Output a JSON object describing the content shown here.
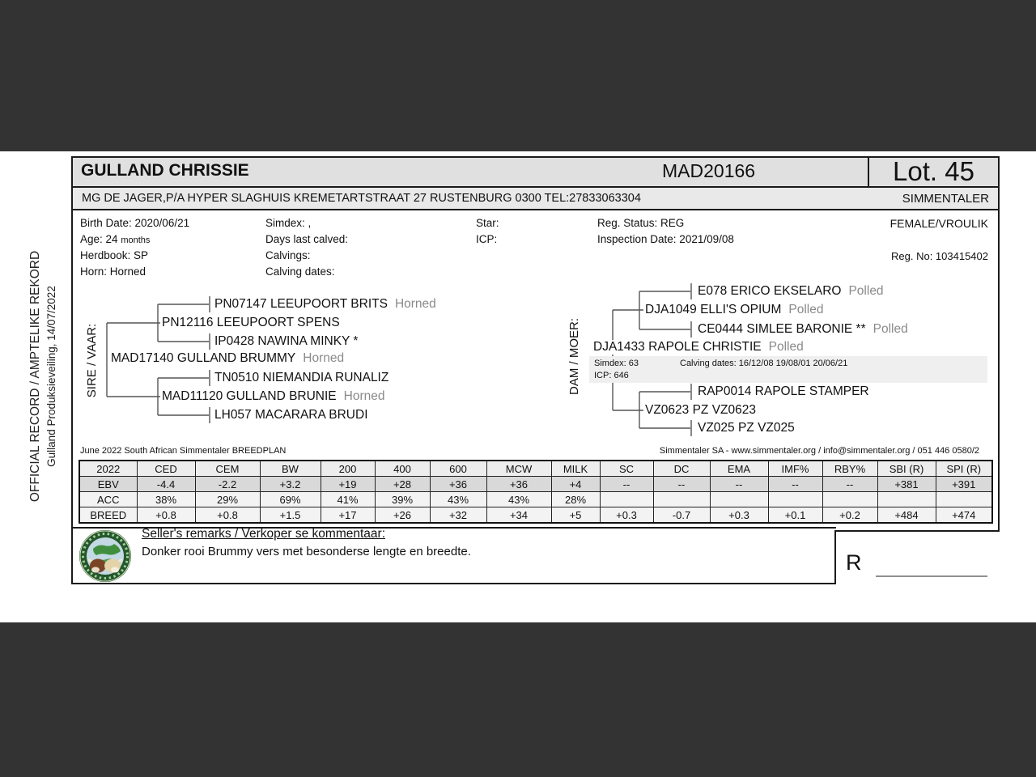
{
  "header": {
    "animal_name": "GULLAND CHRISSIE",
    "animal_id": "MAD20166",
    "lot": "Lot. 45",
    "owner_line": "MG DE JAGER,P/A HYPER SLAGHUIS KREMETARTSTRAAT 27 RUSTENBURG 0300 TEL:27833063304",
    "breed": "SIMMENTALER"
  },
  "side_label": {
    "line1": "OFFICIAL RECORD / AMPTELIKE REKORD",
    "line2": "Gulland Produksieveiling, 14/07/2022"
  },
  "info": {
    "birth_date": "Birth Date: 2020/06/21",
    "age": "Age: 24",
    "age_unit": "months",
    "herdbook": "Herdbook: SP",
    "horn": "Horn: Horned",
    "simdex": "Simdex: ,",
    "days_last_calved": "Days last calved:",
    "calvings": "Calvings:",
    "calving_dates": "Calving dates:",
    "star": "Star:",
    "icp": "ICP:",
    "reg_status": "Reg. Status: REG",
    "inspection_date": "Inspection Date: 2021/09/08",
    "sex": "FEMALE/VROULIK",
    "reg_no": "Reg. No: 103415402"
  },
  "pedigree": {
    "sire_label": "SIRE / VAAR:",
    "dam_label": "DAM / MOER:",
    "sire": {
      "name": "MAD17140 GULLAND BRUMMY",
      "tag": "Horned"
    },
    "sire_sire": {
      "name": "PN12116 LEEUPOORT SPENS",
      "tag": ""
    },
    "sire_sire_sire": {
      "name": "PN07147 LEEUPOORT BRITS",
      "tag": "Horned"
    },
    "sire_sire_dam": {
      "name": "IP0428 NAWINA MINKY *",
      "tag": ""
    },
    "sire_dam": {
      "name": "MAD11120 GULLAND BRUNIE",
      "tag": "Horned"
    },
    "sire_dam_sire": {
      "name": "TN0510 NIEMANDIA RUNALIZ",
      "tag": ""
    },
    "sire_dam_dam": {
      "name": "LH057 MACARARA BRUDI",
      "tag": ""
    },
    "dam": {
      "name": "DJA1433 RAPOLE CHRISTIE",
      "tag": "Polled"
    },
    "dam_info": {
      "simdex": "Simdex: 63",
      "calving_dates": "Calving dates: 16/12/08  19/08/01  20/06/21",
      "icp": "ICP: 646"
    },
    "dam_sire": {
      "name": "DJA1049 ELLI'S OPIUM",
      "tag": "Polled"
    },
    "dam_sire_sire": {
      "name": "E078 ERICO EKSELARO",
      "tag": "Polled"
    },
    "dam_sire_dam": {
      "name": "CE0444 SIMLEE BARONIE **",
      "tag": "Polled"
    },
    "dam_dam": {
      "name": "VZ0623 PZ VZ0623",
      "tag": ""
    },
    "dam_dam_sire": {
      "name": "RAP0014 RAPOLE STAMPER",
      "tag": ""
    },
    "dam_dam_dam": {
      "name": "VZ025 PZ VZ025",
      "tag": ""
    }
  },
  "breedplan": {
    "left": "June 2022 South African Simmentaler BREEDPLAN",
    "right": "Simmentaler SA - www.simmentaler.org / info@simmentaler.org / 051 446 0580/2"
  },
  "table": {
    "headers": [
      "2022",
      "CED",
      "CEM",
      "BW",
      "200",
      "400",
      "600",
      "MCW",
      "MILK",
      "SC",
      "DC",
      "EMA",
      "IMF%",
      "RBY%",
      "SBI (R)",
      "SPI (R)"
    ],
    "rows": [
      {
        "label": "EBV",
        "values": [
          "-4.4",
          "-2.2",
          "+3.2",
          "+19",
          "+28",
          "+36",
          "+36",
          "+4",
          "--",
          "--",
          "--",
          "--",
          "--",
          "+381",
          "+391"
        ]
      },
      {
        "label": "ACC",
        "values": [
          "38%",
          "29%",
          "69%",
          "41%",
          "39%",
          "43%",
          "43%",
          "28%",
          "",
          "",
          "",
          "",
          "",
          "",
          ""
        ]
      },
      {
        "label": "BREED",
        "values": [
          "+0.8",
          "+0.8",
          "+1.5",
          "+17",
          "+26",
          "+32",
          "+34",
          "+5",
          "+0.3",
          "-0.7",
          "+0.3",
          "+0.1",
          "+0.2",
          "+484",
          "+474"
        ]
      }
    ]
  },
  "remarks": {
    "heading": "Seller's remarks / Verkoper se kommentaar:",
    "text": "Donker rooi Brummy vers met besonderse lengte en breedte."
  },
  "price": {
    "currency": "R"
  },
  "colors": {
    "band": "#333333",
    "title_bg": "#e0e0e0",
    "address_bg": "#e9e9e9",
    "ebv_row_bg": "#d9d9d9",
    "muted_text": "#8a8a8a"
  }
}
